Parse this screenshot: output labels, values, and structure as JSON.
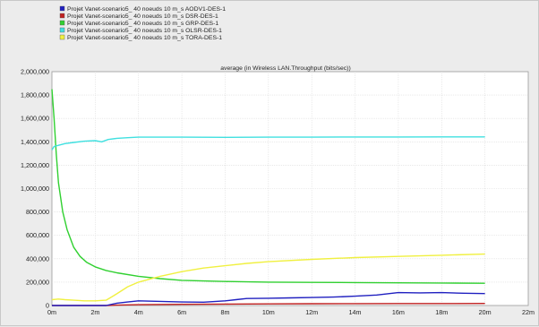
{
  "chart_data": {
    "type": "line",
    "title": "average (in Wireless LAN.Throughput (bits/sec))",
    "xlabel": "",
    "ylabel": "",
    "xlim": [
      0,
      22
    ],
    "ylim": [
      0,
      2000000
    ],
    "x_tick_values": [
      0,
      2,
      4,
      6,
      8,
      10,
      12,
      14,
      16,
      18,
      20,
      22
    ],
    "x_tick_labels": [
      "0m",
      "2m",
      "4m",
      "6m",
      "8m",
      "10m",
      "12m",
      "14m",
      "16m",
      "18m",
      "20m",
      "22m"
    ],
    "y_tick_values": [
      0,
      200000,
      400000,
      600000,
      800000,
      1000000,
      1200000,
      1400000,
      1600000,
      1800000,
      2000000
    ],
    "y_tick_labels": [
      "0",
      "200,000",
      "400,000",
      "600,000",
      "800,000",
      "1,000,000",
      "1,200,000",
      "1,400,000",
      "1,600,000",
      "1,800,000",
      "2,000,000"
    ],
    "grid": true,
    "legend_position": "top-left",
    "series": [
      {
        "name": "Projet Vanet-scenario5_ 40 noeuds 10 m_s AODV1-DES-1",
        "color": "#2020c0",
        "x": [
          0,
          2.5,
          3,
          3.5,
          4,
          5,
          6,
          7,
          8,
          8.5,
          9,
          10,
          11,
          12,
          13,
          14,
          15,
          15.5,
          16,
          17,
          18,
          19,
          20
        ],
        "y": [
          0,
          0,
          20000,
          30000,
          40000,
          35000,
          30000,
          28000,
          40000,
          50000,
          60000,
          62000,
          65000,
          68000,
          72000,
          80000,
          90000,
          100000,
          110000,
          108000,
          110000,
          105000,
          102000
        ]
      },
      {
        "name": "Projet Vanet-scenario5_ 40 noeuds 10 m_s DSR-DES-1",
        "color": "#c02020",
        "x": [
          0,
          2.5,
          3,
          4,
          6,
          8,
          10,
          12,
          14,
          16,
          18,
          20
        ],
        "y": [
          0,
          0,
          3000,
          7000,
          10000,
          12000,
          14000,
          15000,
          16000,
          17000,
          17000,
          18000
        ]
      },
      {
        "name": "Projet Vanet-scenario5_ 40 noeuds 10 m_s GRP-DES-1",
        "color": "#30d030",
        "x": [
          0,
          0.1,
          0.2,
          0.3,
          0.5,
          0.7,
          1,
          1.3,
          1.6,
          2,
          2.5,
          3,
          4,
          5,
          6,
          8,
          10,
          12,
          14,
          16,
          18,
          20
        ],
        "y": [
          1850000,
          1600000,
          1300000,
          1050000,
          800000,
          650000,
          500000,
          420000,
          370000,
          330000,
          300000,
          280000,
          250000,
          230000,
          215000,
          205000,
          200000,
          198000,
          196000,
          194000,
          192000,
          190000
        ]
      },
      {
        "name": "Projet Vanet-scenario5_ 40 noeuds 10 m_s OLSR-DES-1",
        "color": "#40e0e0",
        "x": [
          0,
          0.1,
          0.3,
          0.6,
          1,
          1.5,
          2,
          2.3,
          2.6,
          3,
          3.5,
          4,
          6,
          8,
          10,
          12,
          14,
          16,
          18,
          20
        ],
        "y": [
          1330000,
          1360000,
          1370000,
          1385000,
          1395000,
          1405000,
          1410000,
          1400000,
          1420000,
          1430000,
          1435000,
          1440000,
          1440000,
          1438000,
          1440000,
          1440000,
          1441000,
          1441000,
          1442000,
          1442000
        ]
      },
      {
        "name": "Projet Vanet-scenario5_ 40 noeuds 10 m_s TORA-DES-1",
        "color": "#f0f040",
        "x": [
          0,
          0.3,
          0.6,
          1,
          1.5,
          2,
          2.5,
          3,
          3.5,
          4,
          5,
          6,
          7,
          8,
          9,
          10,
          12,
          14,
          16,
          18,
          20
        ],
        "y": [
          50000,
          55000,
          50000,
          45000,
          40000,
          40000,
          45000,
          100000,
          160000,
          200000,
          250000,
          290000,
          320000,
          340000,
          360000,
          375000,
          395000,
          410000,
          420000,
          430000,
          440000
        ]
      }
    ]
  }
}
